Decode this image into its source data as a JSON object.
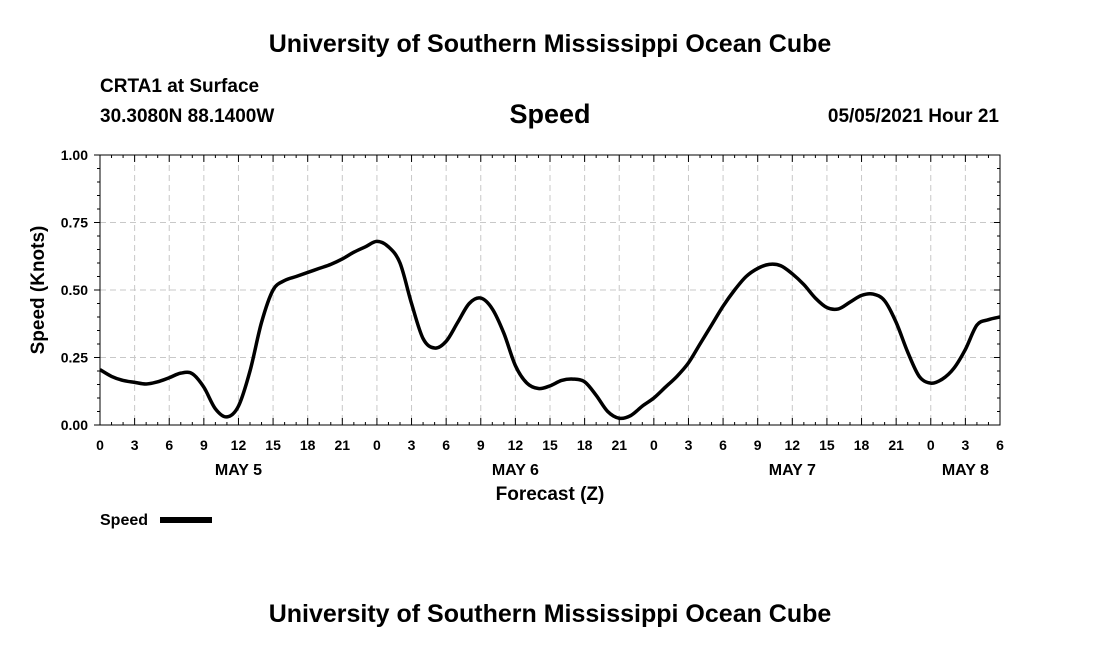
{
  "header": {
    "title": "University of Southern Mississippi Ocean Cube",
    "station": "CRTA1 at Surface",
    "coords": "30.3080N  88.1400W",
    "variable": "Speed",
    "datetime": "05/05/2021 Hour 21"
  },
  "footer": {
    "title": "University of Southern Mississippi Ocean Cube"
  },
  "chart_data": {
    "type": "line",
    "title": "Speed",
    "xlabel": "Forecast (Z)",
    "ylabel": "Speed (Knots)",
    "xlim": [
      0,
      78
    ],
    "ylim": [
      0,
      1.0
    ],
    "grid": true,
    "ytick_values": [
      0,
      0.25,
      0.5,
      0.75,
      1.0
    ],
    "ytick_labels": [
      "0.00",
      "0.25",
      "0.50",
      "0.75",
      "1.00"
    ],
    "xtick_labels": [
      "0",
      "3",
      "6",
      "9",
      "12",
      "15",
      "18",
      "21",
      "0",
      "3",
      "6",
      "9",
      "12",
      "15",
      "18",
      "21",
      "0",
      "3",
      "6",
      "9",
      "12",
      "15",
      "18",
      "21",
      "0",
      "3",
      "6"
    ],
    "day_labels": [
      {
        "hour": 12,
        "label": "MAY 5"
      },
      {
        "hour": 36,
        "label": "MAY 6"
      },
      {
        "hour": 60,
        "label": "MAY 7"
      },
      {
        "hour": 75,
        "label": "MAY 8"
      }
    ],
    "legend": {
      "label": "Speed",
      "position": "bottom-left"
    },
    "series": [
      {
        "name": "Speed",
        "color": "#000000",
        "x": [
          0,
          1,
          2,
          3,
          4,
          5,
          6,
          7,
          8,
          9,
          10,
          11,
          12,
          13,
          14,
          15,
          16,
          17,
          18,
          19,
          20,
          21,
          22,
          23,
          24,
          25,
          26,
          27,
          28,
          29,
          30,
          31,
          32,
          33,
          34,
          35,
          36,
          37,
          38,
          39,
          40,
          41,
          42,
          43,
          44,
          45,
          46,
          47,
          48,
          49,
          50,
          51,
          52,
          53,
          54,
          55,
          56,
          57,
          58,
          59,
          60,
          61,
          62,
          63,
          64,
          65,
          66,
          67,
          68,
          69,
          70,
          71,
          72,
          73,
          74,
          75,
          76,
          77,
          78
        ],
        "values": [
          0.205,
          0.18,
          0.165,
          0.158,
          0.152,
          0.16,
          0.175,
          0.192,
          0.19,
          0.14,
          0.06,
          0.03,
          0.07,
          0.2,
          0.38,
          0.5,
          0.535,
          0.55,
          0.565,
          0.58,
          0.595,
          0.615,
          0.64,
          0.66,
          0.68,
          0.66,
          0.6,
          0.45,
          0.32,
          0.285,
          0.31,
          0.38,
          0.45,
          0.47,
          0.43,
          0.34,
          0.22,
          0.155,
          0.135,
          0.145,
          0.165,
          0.17,
          0.16,
          0.11,
          0.05,
          0.025,
          0.035,
          0.07,
          0.1,
          0.14,
          0.18,
          0.23,
          0.3,
          0.37,
          0.44,
          0.5,
          0.55,
          0.58,
          0.595,
          0.59,
          0.56,
          0.52,
          0.47,
          0.435,
          0.43,
          0.455,
          0.48,
          0.485,
          0.46,
          0.38,
          0.27,
          0.18,
          0.155,
          0.17,
          0.21,
          0.28,
          0.37,
          0.39,
          0.4
        ]
      }
    ]
  }
}
